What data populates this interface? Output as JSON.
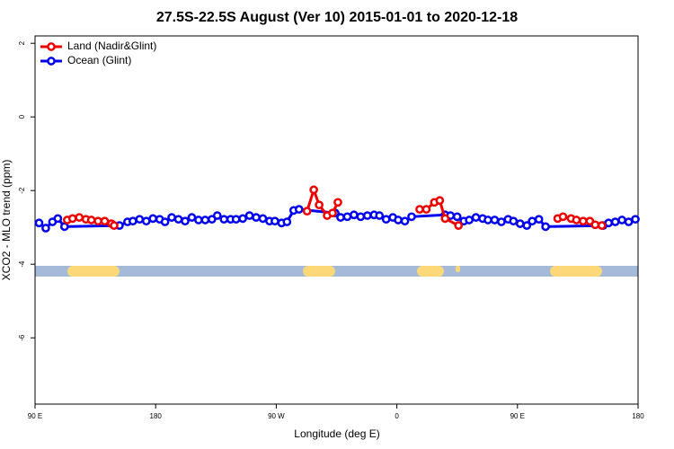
{
  "chart_data": {
    "type": "line",
    "title": "27.5S-22.5S August (Ver 10)   2015-01-01 to 2020-12-18",
    "x_label": "Longitude (deg E)",
    "y_label": "XCO2 - MLO trend (ppm)",
    "xlim": [
      90,
      540
    ],
    "xticks": [
      {
        "value": 90,
        "label": "90 E"
      },
      180,
      {
        "value": 270,
        "label": "90 W"
      },
      {
        "value": 360,
        "label": "0"
      },
      {
        "value": 450,
        "label": "90 E"
      },
      {
        "value": 540,
        "label": "180"
      }
    ],
    "ylim": [
      -7.8,
      2.2
    ],
    "yticks": [
      2,
      0,
      -2,
      -4,
      -6
    ],
    "legend": "top-left",
    "series": [
      {
        "name": "Ocean (Glint)",
        "color": "#0000ee",
        "x": [
          93,
          98,
          103,
          107,
          112,
          153,
          159,
          163,
          168,
          173,
          178,
          183,
          187,
          192,
          197,
          202,
          207,
          212,
          217,
          222,
          226,
          231,
          236,
          240,
          245,
          250,
          255,
          260,
          265,
          269,
          274,
          278,
          283,
          287,
          314,
          318,
          323,
          328,
          333,
          338,
          343,
          347,
          352,
          357,
          361,
          366,
          371,
          396,
          400,
          405,
          410,
          414,
          419,
          424,
          428,
          433,
          438,
          443,
          447,
          452,
          457,
          461,
          466,
          471,
          514,
          518,
          523,
          528,
          533,
          538
        ],
        "values": [
          -2.88,
          -3.02,
          -2.85,
          -2.76,
          -2.98,
          -2.95,
          -2.85,
          -2.83,
          -2.78,
          -2.83,
          -2.76,
          -2.78,
          -2.85,
          -2.73,
          -2.78,
          -2.83,
          -2.73,
          -2.8,
          -2.8,
          -2.78,
          -2.68,
          -2.78,
          -2.78,
          -2.78,
          -2.76,
          -2.68,
          -2.73,
          -2.76,
          -2.83,
          -2.83,
          -2.88,
          -2.85,
          -2.54,
          -2.51,
          -2.61,
          -2.73,
          -2.71,
          -2.66,
          -2.71,
          -2.68,
          -2.66,
          -2.68,
          -2.78,
          -2.73,
          -2.8,
          -2.83,
          -2.71,
          -2.66,
          -2.68,
          -2.71,
          -2.83,
          -2.8,
          -2.73,
          -2.76,
          -2.8,
          -2.8,
          -2.85,
          -2.78,
          -2.83,
          -2.9,
          -2.95,
          -2.83,
          -2.78,
          -2.98,
          -2.95,
          -2.88,
          -2.85,
          -2.8,
          -2.85,
          -2.78
        ]
      },
      {
        "name": "Land (Nadir&Glint)",
        "color": "#ee0000",
        "x": [
          114,
          118,
          123,
          128,
          132,
          137,
          142,
          147,
          149,
          288,
          293,
          298,
          302,
          308,
          312,
          316,
          375,
          377,
          382,
          388,
          392,
          396,
          406,
          475,
          480,
          484,
          490,
          494,
          499,
          504,
          508,
          513
        ],
        "values": [
          -2.8,
          -2.76,
          -2.73,
          -2.78,
          -2.8,
          -2.83,
          -2.83,
          -2.9,
          -2.95,
          null,
          -2.56,
          -1.98,
          -2.39,
          -2.68,
          -2.61,
          -2.32,
          null,
          -2.51,
          -2.51,
          -2.32,
          -2.27,
          -2.76,
          -2.95,
          null,
          -2.76,
          -2.71,
          -2.76,
          -2.8,
          -2.83,
          -2.83,
          -2.93,
          -2.95
        ]
      }
    ]
  }
}
